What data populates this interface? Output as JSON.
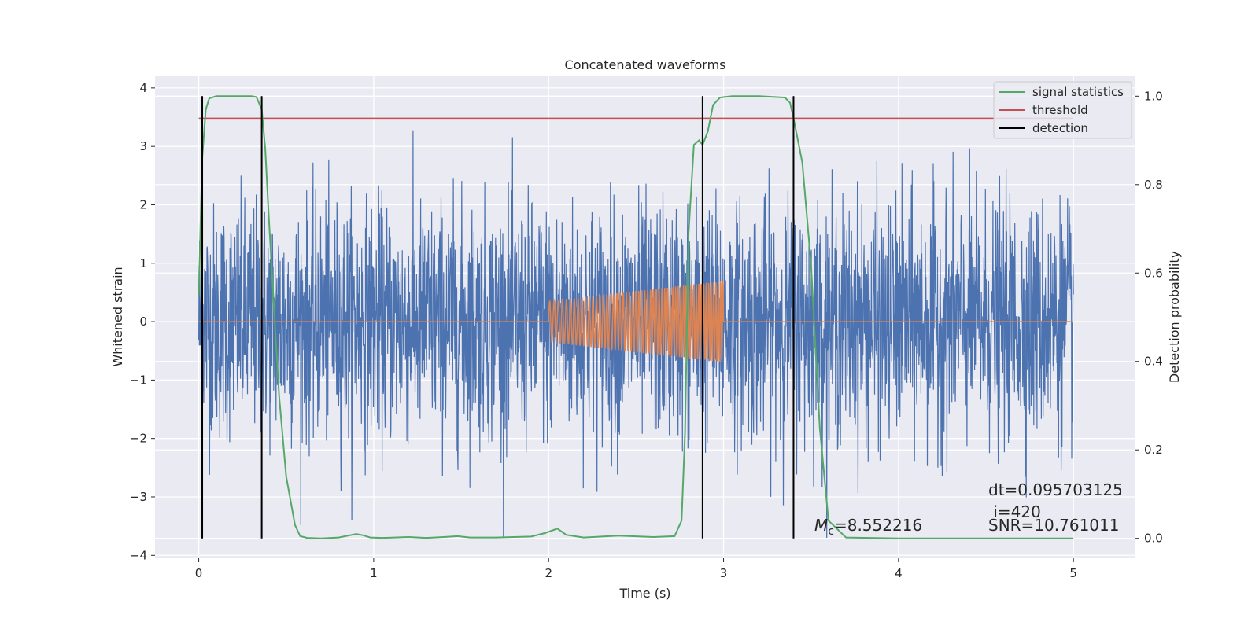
{
  "chart_data": {
    "type": "line",
    "title": "Concatenated waveforms",
    "xlabel": "Time (s)",
    "ylabel": "Whitened strain",
    "y2label": "Detection probability",
    "xlim": [
      -0.25,
      5.35
    ],
    "ylim": [
      -4.05,
      4.2
    ],
    "y2lim": [
      -0.045,
      1.045
    ],
    "xticks": [
      "0",
      "1",
      "2",
      "3",
      "4",
      "5"
    ],
    "yticks": [
      "−4",
      "−3",
      "−2",
      "−1",
      "0",
      "1",
      "2",
      "3",
      "4"
    ],
    "y2ticks": [
      "0.0",
      "0.2",
      "0.4",
      "0.6",
      "0.8",
      "1.0"
    ],
    "grid": true,
    "legend_position": "top-right",
    "legend": [
      {
        "label": "signal statistics",
        "color": "#55a868"
      },
      {
        "label": "threshold",
        "color": "#c44e52"
      },
      {
        "label": "detection",
        "color": "#000000"
      }
    ],
    "colors": {
      "noise": "#4c72b0",
      "waveform": "#dd8452",
      "signal_statistics": "#55a868",
      "threshold": "#c44e52",
      "detection": "#000000",
      "axes_bg": "#eaeaf2",
      "grid": "#ffffff"
    },
    "series": [
      {
        "axis": "y2",
        "x": [
          0,
          0.02,
          0.04,
          0.06,
          0.1,
          0.2,
          0.3,
          0.33,
          0.36,
          0.38,
          0.4,
          0.43,
          0.46,
          0.5,
          0.55,
          0.58,
          0.62,
          0.7,
          0.8,
          0.9,
          0.94,
          0.98,
          1.05,
          1.2,
          1.3,
          1.4,
          1.48,
          1.55,
          1.7,
          1.9,
          1.98,
          2.05,
          2.1,
          2.2,
          2.4,
          2.6,
          2.72,
          2.76,
          2.78,
          2.8,
          2.83,
          2.86,
          2.88,
          2.91,
          2.94,
          2.98,
          3.05,
          3.2,
          3.35,
          3.38,
          3.4,
          3.45,
          3.5,
          3.55,
          3.6,
          3.7,
          4.0,
          4.5,
          5.0
        ],
        "values": [
          0.55,
          0.86,
          0.97,
          0.995,
          1.0,
          1.0,
          1.0,
          0.998,
          0.97,
          0.88,
          0.73,
          0.52,
          0.32,
          0.14,
          0.03,
          0.005,
          0.001,
          0.0,
          0.002,
          0.01,
          0.007,
          0.002,
          0.001,
          0.003,
          0.001,
          0.003,
          0.005,
          0.002,
          0.002,
          0.004,
          0.012,
          0.022,
          0.008,
          0.002,
          0.006,
          0.003,
          0.005,
          0.04,
          0.24,
          0.69,
          0.89,
          0.9,
          0.89,
          0.92,
          0.98,
          0.997,
          1.0,
          1.0,
          0.997,
          0.985,
          0.95,
          0.85,
          0.62,
          0.25,
          0.04,
          0.002,
          0.0,
          0.0,
          0.0
        ]
      },
      {
        "axis": "y2",
        "x": [
          0,
          5
        ],
        "values": [
          0.95,
          0.95
        ]
      },
      {
        "axis": "y2",
        "x": [
          0.02,
          0.36,
          2.88,
          3.4
        ],
        "values": [
          1.0,
          1.0,
          1.0,
          1.0
        ]
      },
      {
        "axis": "y",
        "x": [
          0,
          1.99,
          2.0,
          3.0,
          3.01,
          5.0
        ],
        "values": [
          0,
          0,
          0.35,
          0.7,
          0,
          0
        ]
      }
    ],
    "annotations": [
      {
        "text": "dt=0.095703125"
      },
      {
        "text": " i=420"
      },
      {
        "mathvar": "M",
        "subscript": "c",
        "text": "=8.552216"
      },
      {
        "text": "SNR=10.761011"
      }
    ]
  }
}
